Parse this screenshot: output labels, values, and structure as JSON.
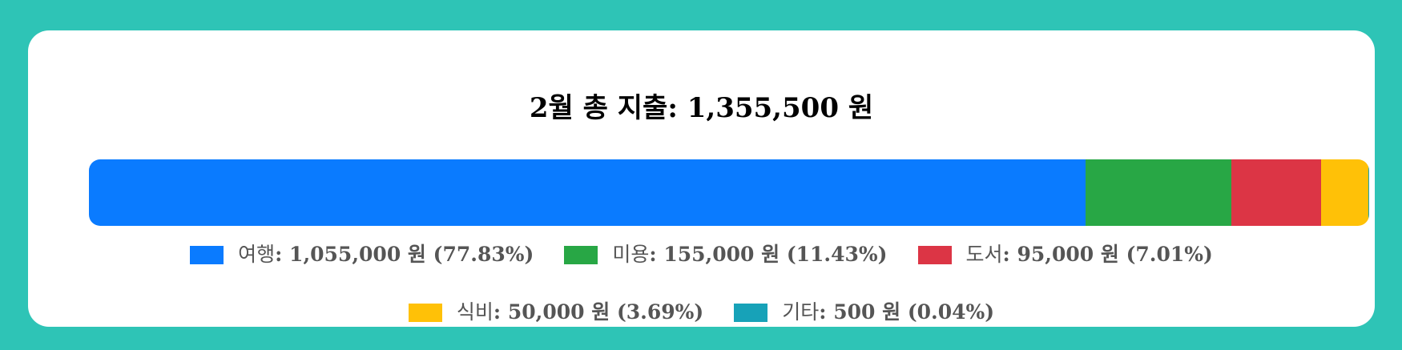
{
  "title": "2월 총 지출: 1,355,500 원",
  "chart_data": {
    "type": "bar",
    "orientation": "horizontal-stacked",
    "title": "2월 총 지출: 1,355,500 원",
    "total": 1355500,
    "unit": "원",
    "series": [
      {
        "name": "여행",
        "value": 1055000,
        "value_label": "1,055,000 원",
        "percent_label": "(77.83%)",
        "color": "#0a7bff"
      },
      {
        "name": "미용",
        "value": 155000,
        "value_label": "155,000 원",
        "percent_label": "(11.43%)",
        "color": "#28a745"
      },
      {
        "name": "도서",
        "value": 95000,
        "value_label": "95,000 원",
        "percent_label": "(7.01%)",
        "color": "#dc3545"
      },
      {
        "name": "식비",
        "value": 50000,
        "value_label": "50,000 원",
        "percent_label": "(3.69%)",
        "color": "#ffc107"
      },
      {
        "name": "기타",
        "value": 500,
        "value_label": "500 원",
        "percent_label": "(0.04%)",
        "color": "#17a2b8"
      }
    ],
    "legend_position": "bottom",
    "grid": false
  }
}
